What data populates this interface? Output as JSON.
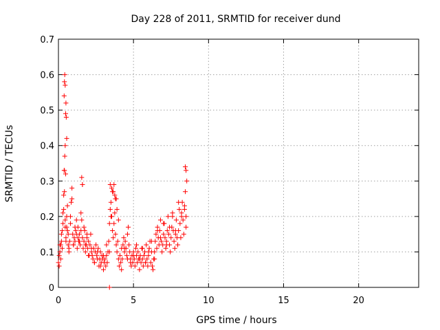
{
  "chart_data": {
    "type": "scatter",
    "title": "Day 228 of 2011, SRMTID for receiver dund",
    "xlabel": "GPS time / hours",
    "ylabel": "SRMTID / TECUs",
    "xlim": [
      0,
      24
    ],
    "ylim": [
      0,
      0.7
    ],
    "xticks": [
      0,
      5,
      10,
      15,
      20
    ],
    "yticks": [
      0,
      0.1,
      0.2,
      0.3,
      0.4,
      0.5,
      0.6,
      0.7
    ],
    "grid": true,
    "marker": "+",
    "color": "#ff0000",
    "series": [
      {
        "name": "SRMTID",
        "x": [
          0.0,
          0.05,
          0.1,
          0.15,
          0.2,
          0.25,
          0.3,
          0.35,
          0.4,
          0.45,
          0.5,
          0.55,
          0.6,
          0.65,
          0.7,
          0.75,
          0.8,
          0.85,
          0.9,
          0.95,
          1.0,
          1.05,
          1.1,
          1.15,
          1.2,
          1.25,
          1.3,
          1.35,
          1.4,
          1.45,
          1.5,
          1.55,
          1.6,
          1.65,
          1.7,
          1.75,
          1.8,
          1.85,
          1.9,
          1.95,
          2.0,
          2.05,
          2.1,
          2.15,
          2.2,
          2.25,
          2.3,
          2.35,
          2.4,
          2.45,
          2.5,
          2.55,
          2.6,
          2.65,
          2.7,
          2.75,
          2.8,
          2.85,
          2.9,
          2.95,
          3.0,
          3.05,
          3.1,
          3.15,
          3.2,
          3.25,
          3.3,
          3.35,
          3.4,
          3.45,
          3.5,
          3.55,
          3.6,
          3.65,
          3.7,
          3.75,
          3.8,
          3.85,
          3.9,
          3.95,
          4.0,
          4.05,
          4.1,
          4.15,
          4.2,
          4.25,
          4.3,
          4.35,
          4.4,
          4.45,
          4.5,
          4.55,
          4.6,
          4.65,
          4.7,
          4.75,
          4.8,
          4.85,
          4.9,
          4.95,
          5.0,
          5.05,
          5.1,
          5.15,
          5.2,
          5.25,
          5.3,
          5.35,
          5.4,
          5.45,
          5.5,
          5.55,
          5.6,
          5.65,
          5.7,
          5.75,
          5.8,
          5.85,
          5.9,
          5.95,
          6.0,
          6.05,
          6.1,
          6.15,
          6.2,
          6.25,
          6.3,
          6.35,
          6.4,
          6.45,
          6.5,
          6.55,
          6.6,
          6.65,
          6.7,
          6.75,
          6.8,
          6.85,
          6.9,
          6.95,
          7.0,
          7.05,
          7.1,
          7.15,
          7.2,
          7.25,
          7.3,
          7.35,
          7.4,
          7.45,
          7.5,
          7.55,
          7.6,
          7.65,
          7.7,
          7.75,
          7.8,
          7.85,
          7.9,
          7.95,
          8.0,
          8.05,
          8.1,
          8.15,
          8.2,
          8.25,
          8.3,
          8.35,
          8.4,
          8.45,
          8.5,
          0.05,
          0.1,
          0.15,
          0.2,
          0.25,
          0.3,
          0.35,
          0.4,
          0.45,
          0.5,
          0.55,
          0.6,
          0.65,
          0.7,
          0.8,
          0.9,
          1.0,
          1.1,
          1.2,
          1.3,
          1.4,
          1.5,
          1.6,
          1.7,
          1.8,
          1.9,
          2.0,
          2.2,
          2.4,
          2.6,
          2.8,
          3.0,
          3.2,
          3.4,
          3.5,
          3.6,
          3.7,
          3.8,
          3.9,
          4.0,
          4.2,
          4.4,
          4.6,
          4.8,
          5.0,
          5.2,
          5.4,
          5.6,
          5.8,
          6.0,
          6.2,
          6.4,
          6.6,
          6.8,
          7.0,
          7.2,
          7.4,
          7.6,
          7.8,
          8.0,
          8.2,
          8.4,
          8.5,
          0.38,
          0.4,
          0.42,
          0.45,
          0.48,
          0.5,
          0.52,
          0.55,
          0.38,
          0.42,
          0.45,
          0.48,
          1.55,
          1.6,
          3.45,
          3.55,
          3.65,
          3.75,
          3.85,
          8.45,
          8.5,
          8.55,
          3.4
        ],
        "y": [
          0.07,
          0.06,
          0.1,
          0.12,
          0.15,
          0.11,
          0.18,
          0.22,
          0.27,
          0.17,
          0.14,
          0.2,
          0.16,
          0.12,
          0.1,
          0.13,
          0.18,
          0.24,
          0.28,
          0.15,
          0.12,
          0.14,
          0.13,
          0.16,
          0.15,
          0.11,
          0.17,
          0.13,
          0.15,
          0.12,
          0.16,
          0.19,
          0.14,
          0.11,
          0.13,
          0.16,
          0.1,
          0.12,
          0.14,
          0.11,
          0.13,
          0.09,
          0.12,
          0.15,
          0.1,
          0.09,
          0.08,
          0.11,
          0.07,
          0.1,
          0.12,
          0.09,
          0.08,
          0.11,
          0.06,
          0.08,
          0.1,
          0.07,
          0.09,
          0.08,
          0.05,
          0.07,
          0.08,
          0.06,
          0.09,
          0.07,
          0.1,
          0.13,
          0.18,
          0.22,
          0.24,
          0.2,
          0.16,
          0.14,
          0.18,
          0.21,
          0.15,
          0.12,
          0.1,
          0.13,
          0.08,
          0.06,
          0.09,
          0.07,
          0.11,
          0.08,
          0.12,
          0.14,
          0.1,
          0.13,
          0.11,
          0.09,
          0.15,
          0.17,
          0.12,
          0.1,
          0.08,
          0.06,
          0.09,
          0.07,
          0.1,
          0.08,
          0.06,
          0.11,
          0.09,
          0.07,
          0.1,
          0.08,
          0.05,
          0.09,
          0.07,
          0.11,
          0.08,
          0.06,
          0.09,
          0.1,
          0.07,
          0.12,
          0.08,
          0.06,
          0.09,
          0.11,
          0.13,
          0.07,
          0.1,
          0.06,
          0.05,
          0.08,
          0.1,
          0.13,
          0.15,
          0.11,
          0.17,
          0.14,
          0.12,
          0.16,
          0.19,
          0.13,
          0.1,
          0.12,
          0.15,
          0.18,
          0.14,
          0.11,
          0.13,
          0.16,
          0.2,
          0.15,
          0.12,
          0.1,
          0.14,
          0.17,
          0.21,
          0.16,
          0.13,
          0.11,
          0.15,
          0.19,
          0.14,
          0.12,
          0.16,
          0.22,
          0.18,
          0.14,
          0.2,
          0.24,
          0.19,
          0.15,
          0.22,
          0.27,
          0.2,
          0.09,
          0.12,
          0.08,
          0.13,
          0.16,
          0.21,
          0.26,
          0.33,
          0.19,
          0.13,
          0.17,
          0.23,
          0.15,
          0.11,
          0.2,
          0.25,
          0.12,
          0.17,
          0.19,
          0.14,
          0.13,
          0.21,
          0.29,
          0.17,
          0.12,
          0.15,
          0.09,
          0.11,
          0.07,
          0.1,
          0.06,
          0.09,
          0.12,
          0.1,
          0.2,
          0.27,
          0.29,
          0.25,
          0.22,
          0.19,
          0.05,
          0.11,
          0.08,
          0.07,
          0.09,
          0.12,
          0.08,
          0.11,
          0.07,
          0.1,
          0.13,
          0.08,
          0.16,
          0.14,
          0.18,
          0.12,
          0.17,
          0.2,
          0.16,
          0.24,
          0.21,
          0.23,
          0.17,
          0.54,
          0.58,
          0.6,
          0.57,
          0.49,
          0.52,
          0.48,
          0.42,
          0.33,
          0.37,
          0.4,
          0.32,
          0.31,
          0.29,
          0.29,
          0.28,
          0.27,
          0.26,
          0.25,
          0.34,
          0.33,
          0.3,
          0.0
        ]
      }
    ]
  }
}
